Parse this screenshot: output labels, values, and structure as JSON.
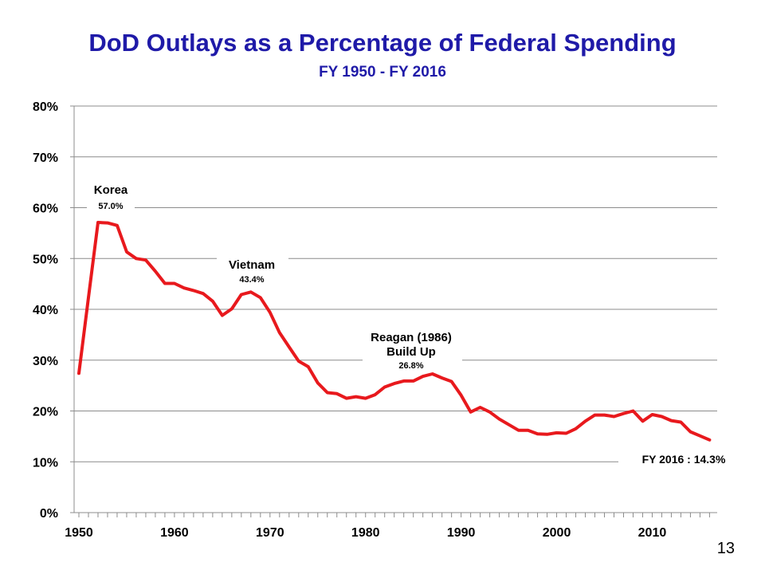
{
  "title": "DoD Outlays as a Percentage of Federal Spending",
  "subtitle": "FY 1950 - FY 2016",
  "page_number": "13",
  "chart_data": {
    "type": "line",
    "title": "DoD Outlays as a Percentage of Federal Spending",
    "subtitle": "FY 1950 - FY 2016",
    "xlabel": "",
    "ylabel": "",
    "xlim": [
      1949.5,
      2016.8
    ],
    "ylim": [
      0,
      80
    ],
    "x_ticks": [
      1950,
      1960,
      1970,
      1980,
      1990,
      2000,
      2010
    ],
    "x_tick_labels": [
      "1950",
      "1960",
      "1970",
      "1980",
      "1990",
      "2000",
      "2010"
    ],
    "y_ticks": [
      0,
      10,
      20,
      30,
      40,
      50,
      60,
      70,
      80
    ],
    "y_tick_labels": [
      "0%",
      "10%",
      "20%",
      "30%",
      "40%",
      "50%",
      "60%",
      "70%",
      "80%"
    ],
    "grid": true,
    "line_color": "#e8191d",
    "x": [
      1950,
      1951,
      1952,
      1953,
      1954,
      1955,
      1956,
      1957,
      1958,
      1959,
      1960,
      1961,
      1962,
      1963,
      1964,
      1965,
      1966,
      1967,
      1968,
      1969,
      1970,
      1971,
      1972,
      1973,
      1974,
      1975,
      1976,
      1977,
      1978,
      1979,
      1980,
      1981,
      1982,
      1983,
      1984,
      1985,
      1986,
      1987,
      1988,
      1989,
      1990,
      1991,
      1992,
      1993,
      1994,
      1995,
      1996,
      1997,
      1998,
      1999,
      2000,
      2001,
      2002,
      2003,
      2004,
      2005,
      2006,
      2007,
      2008,
      2009,
      2010,
      2011,
      2012,
      2013,
      2014,
      2015,
      2016
    ],
    "series": [
      {
        "values": [
          27.4,
          42.3,
          57.1,
          57.0,
          56.5,
          51.3,
          50.0,
          49.7,
          47.5,
          45.1,
          45.1,
          44.2,
          43.7,
          43.1,
          41.6,
          38.8,
          40.1,
          42.9,
          43.4,
          42.3,
          39.4,
          35.4,
          32.6,
          29.8,
          28.7,
          25.5,
          23.6,
          23.4,
          22.5,
          22.8,
          22.5,
          23.2,
          24.7,
          25.4,
          25.9,
          25.9,
          26.8,
          27.3,
          26.5,
          25.8,
          23.1,
          19.8,
          20.7,
          19.8,
          18.4,
          17.3,
          16.2,
          16.2,
          15.5,
          15.4,
          15.7,
          15.6,
          16.5,
          18.0,
          19.2,
          19.2,
          18.9,
          19.5,
          20.0,
          18.0,
          19.3,
          18.9,
          18.1,
          17.8,
          15.9,
          15.1,
          14.3
        ]
      }
    ],
    "annotations": [
      {
        "label": "Korea",
        "value_label": "57.0%",
        "x": 1952.5
      },
      {
        "label": "Vietnam",
        "value_label": "43.4%",
        "x": 1968
      },
      {
        "label": "Reagan (1986)",
        "label2": "Build Up",
        "value_label": "26.8%",
        "x": 1986.7
      },
      {
        "label": "FY 2016 : 14.3%",
        "x": 2016
      }
    ]
  }
}
